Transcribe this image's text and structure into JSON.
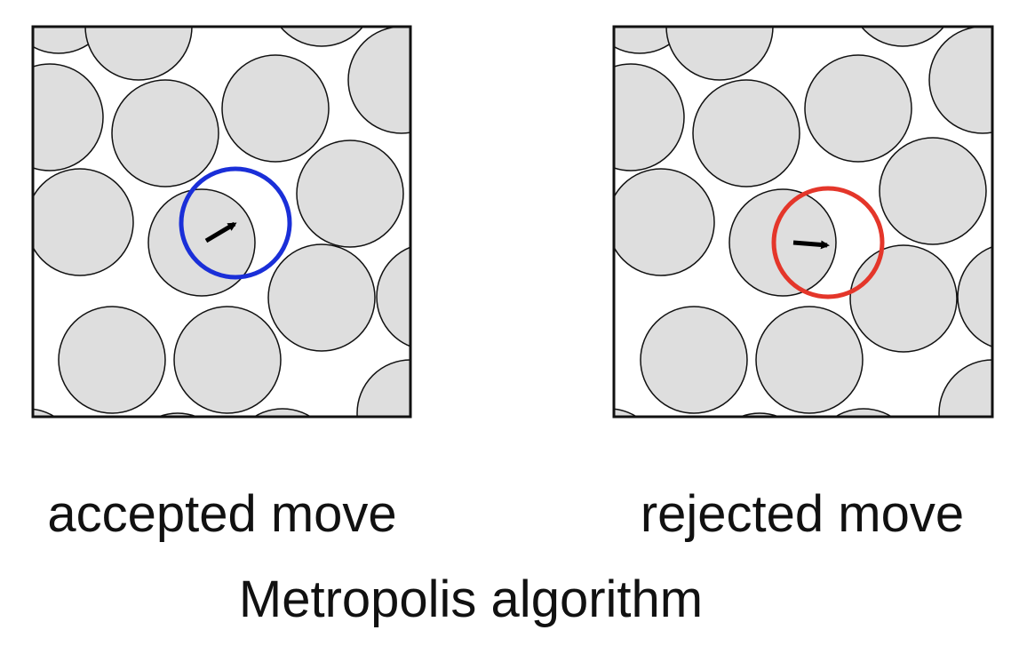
{
  "panels": [
    {
      "caption": "accepted move",
      "trial_color": "#1a2fd8"
    },
    {
      "caption": "rejected move",
      "trial_color": "#e4362a"
    }
  ],
  "title": "Metropolis algorithm",
  "arrow_color": "#000000",
  "disk_fill": "#dedede"
}
